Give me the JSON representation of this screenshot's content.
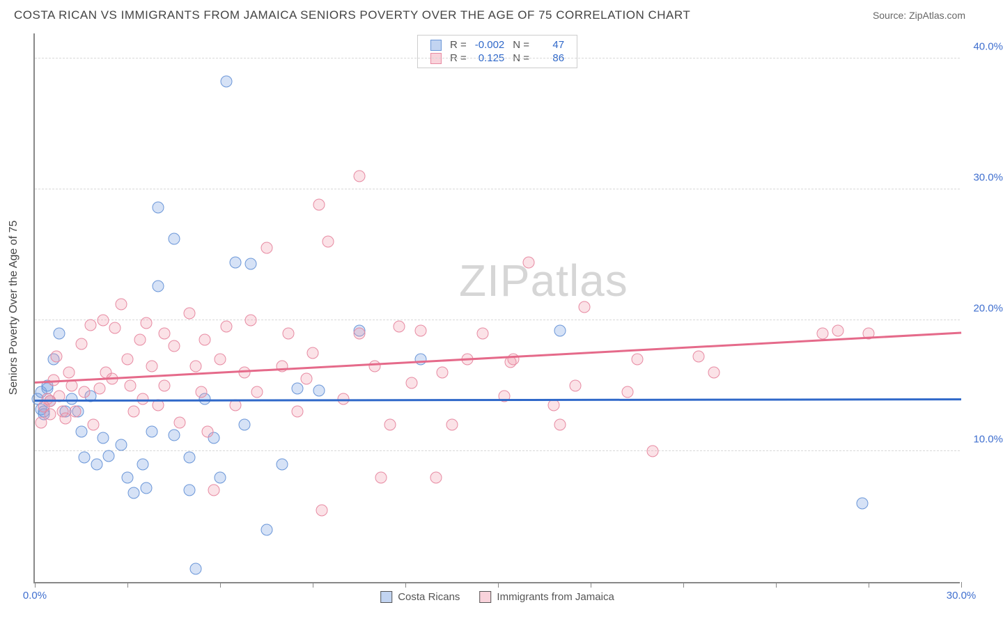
{
  "title": "COSTA RICAN VS IMMIGRANTS FROM JAMAICA SENIORS POVERTY OVER THE AGE OF 75 CORRELATION CHART",
  "source": "Source: ZipAtlas.com",
  "y_axis_label": "Seniors Poverty Over the Age of 75",
  "watermark": "ZIPatlas",
  "colors": {
    "series0_fill": "rgba(120,160,225,0.30)",
    "series0_stroke": "#6a96d8",
    "series0_line": "#2f68c9",
    "series1_fill": "rgba(240,150,170,0.28)",
    "series1_stroke": "#e78aa2",
    "series1_line": "#e56a8a",
    "tick_label": "#3f6fcf",
    "grid": "#d8d8d8",
    "axis": "#888"
  },
  "x_axis": {
    "min": 0,
    "max": 30,
    "ticks": [
      0,
      3,
      6,
      9,
      12,
      15,
      18,
      21,
      24,
      27,
      30
    ],
    "tick_labels": {
      "0": "0.0%",
      "30": "30.0%"
    }
  },
  "y_axis": {
    "min": 0,
    "max": 42,
    "ticks": [
      10,
      20,
      30,
      40
    ],
    "tick_labels": {
      "10": "10.0%",
      "20": "20.0%",
      "30": "30.0%",
      "40": "40.0%"
    }
  },
  "legend_top": [
    {
      "series": 0,
      "r_label": "R =",
      "r": "-0.002",
      "n_label": "N =",
      "n": "47"
    },
    {
      "series": 1,
      "r_label": "R =",
      "r": "0.125",
      "n_label": "N =",
      "n": "86"
    }
  ],
  "legend_bottom": [
    {
      "series": 0,
      "label": "Costa Ricans"
    },
    {
      "series": 1,
      "label": "Immigrants from Jamaica"
    }
  ],
  "trendlines": [
    {
      "series": 0,
      "y_start": 13.8,
      "y_end": 13.9
    },
    {
      "series": 1,
      "y_start": 15.2,
      "y_end": 19.0
    }
  ],
  "series": [
    {
      "name": "Costa Ricans",
      "points": [
        [
          0.1,
          14.0
        ],
        [
          0.2,
          13.2
        ],
        [
          0.2,
          14.5
        ],
        [
          0.3,
          13.0
        ],
        [
          0.4,
          14.8
        ],
        [
          0.3,
          12.8
        ],
        [
          0.5,
          13.8
        ],
        [
          0.4,
          15.0
        ],
        [
          0.6,
          17.0
        ],
        [
          0.8,
          19.0
        ],
        [
          1.2,
          14.0
        ],
        [
          1.0,
          13.0
        ],
        [
          1.5,
          11.5
        ],
        [
          1.8,
          14.2
        ],
        [
          1.4,
          13.0
        ],
        [
          1.6,
          9.5
        ],
        [
          2.0,
          9.0
        ],
        [
          2.4,
          9.6
        ],
        [
          2.2,
          11.0
        ],
        [
          2.8,
          10.5
        ],
        [
          3.0,
          8.0
        ],
        [
          3.2,
          6.8
        ],
        [
          3.5,
          9.0
        ],
        [
          3.8,
          11.5
        ],
        [
          3.6,
          7.2
        ],
        [
          4.0,
          22.6
        ],
        [
          4.0,
          28.6
        ],
        [
          4.5,
          26.2
        ],
        [
          4.5,
          11.2
        ],
        [
          5.0,
          7.0
        ],
        [
          5.0,
          9.5
        ],
        [
          5.2,
          1.0
        ],
        [
          5.5,
          14.0
        ],
        [
          5.8,
          11.0
        ],
        [
          6.0,
          8.0
        ],
        [
          6.2,
          38.2
        ],
        [
          6.5,
          24.4
        ],
        [
          6.8,
          12.0
        ],
        [
          7.0,
          24.3
        ],
        [
          7.5,
          4.0
        ],
        [
          8.0,
          9.0
        ],
        [
          8.5,
          14.8
        ],
        [
          9.2,
          14.6
        ],
        [
          10.5,
          19.2
        ],
        [
          12.5,
          17.0
        ],
        [
          17.0,
          19.2
        ],
        [
          26.8,
          6.0
        ]
      ]
    },
    {
      "name": "Immigrants from Jamaica",
      "points": [
        [
          0.2,
          12.2
        ],
        [
          0.3,
          13.4
        ],
        [
          0.4,
          14.0
        ],
        [
          0.5,
          12.8
        ],
        [
          0.5,
          13.8
        ],
        [
          0.6,
          15.4
        ],
        [
          0.7,
          17.2
        ],
        [
          0.8,
          14.2
        ],
        [
          0.9,
          13.0
        ],
        [
          1.0,
          12.5
        ],
        [
          1.1,
          16.0
        ],
        [
          1.2,
          15.0
        ],
        [
          1.3,
          13.0
        ],
        [
          1.5,
          18.2
        ],
        [
          1.6,
          14.5
        ],
        [
          1.8,
          19.6
        ],
        [
          1.9,
          12.0
        ],
        [
          2.1,
          14.8
        ],
        [
          2.2,
          20.0
        ],
        [
          2.3,
          16.0
        ],
        [
          2.5,
          15.5
        ],
        [
          2.6,
          19.4
        ],
        [
          2.8,
          21.2
        ],
        [
          3.0,
          17.0
        ],
        [
          3.1,
          15.0
        ],
        [
          3.2,
          13.0
        ],
        [
          3.4,
          18.5
        ],
        [
          3.5,
          14.0
        ],
        [
          3.6,
          19.8
        ],
        [
          3.8,
          16.5
        ],
        [
          4.0,
          13.5
        ],
        [
          4.2,
          19.0
        ],
        [
          4.2,
          15.0
        ],
        [
          4.5,
          18.0
        ],
        [
          4.7,
          12.2
        ],
        [
          5.0,
          20.5
        ],
        [
          5.2,
          16.5
        ],
        [
          5.4,
          14.5
        ],
        [
          5.5,
          18.5
        ],
        [
          5.6,
          11.5
        ],
        [
          5.8,
          7.0
        ],
        [
          6.0,
          17.0
        ],
        [
          6.2,
          19.5
        ],
        [
          6.5,
          13.5
        ],
        [
          6.8,
          16.0
        ],
        [
          7.0,
          20.0
        ],
        [
          7.2,
          14.5
        ],
        [
          7.5,
          25.5
        ],
        [
          8.0,
          16.5
        ],
        [
          8.2,
          19.0
        ],
        [
          8.5,
          13.0
        ],
        [
          8.8,
          15.5
        ],
        [
          9.0,
          17.5
        ],
        [
          9.2,
          28.8
        ],
        [
          9.5,
          26.0
        ],
        [
          9.3,
          5.5
        ],
        [
          10.0,
          14.0
        ],
        [
          10.5,
          19.0
        ],
        [
          10.5,
          31.0
        ],
        [
          11.0,
          16.5
        ],
        [
          11.2,
          8.0
        ],
        [
          11.5,
          12.0
        ],
        [
          11.8,
          19.5
        ],
        [
          12.2,
          15.2
        ],
        [
          12.5,
          19.2
        ],
        [
          13.0,
          8.0
        ],
        [
          13.2,
          16.0
        ],
        [
          13.5,
          12.0
        ],
        [
          14.0,
          17.0
        ],
        [
          14.5,
          19.0
        ],
        [
          15.2,
          14.2
        ],
        [
          15.4,
          16.8
        ],
        [
          15.5,
          17.0
        ],
        [
          16.0,
          24.4
        ],
        [
          16.8,
          13.5
        ],
        [
          17.0,
          12.0
        ],
        [
          17.5,
          15.0
        ],
        [
          17.8,
          21.0
        ],
        [
          19.2,
          14.5
        ],
        [
          19.5,
          17.0
        ],
        [
          20.0,
          10.0
        ],
        [
          21.5,
          17.2
        ],
        [
          22.0,
          16.0
        ],
        [
          25.5,
          19.0
        ],
        [
          26.0,
          19.2
        ],
        [
          27.0,
          19.0
        ]
      ]
    }
  ]
}
